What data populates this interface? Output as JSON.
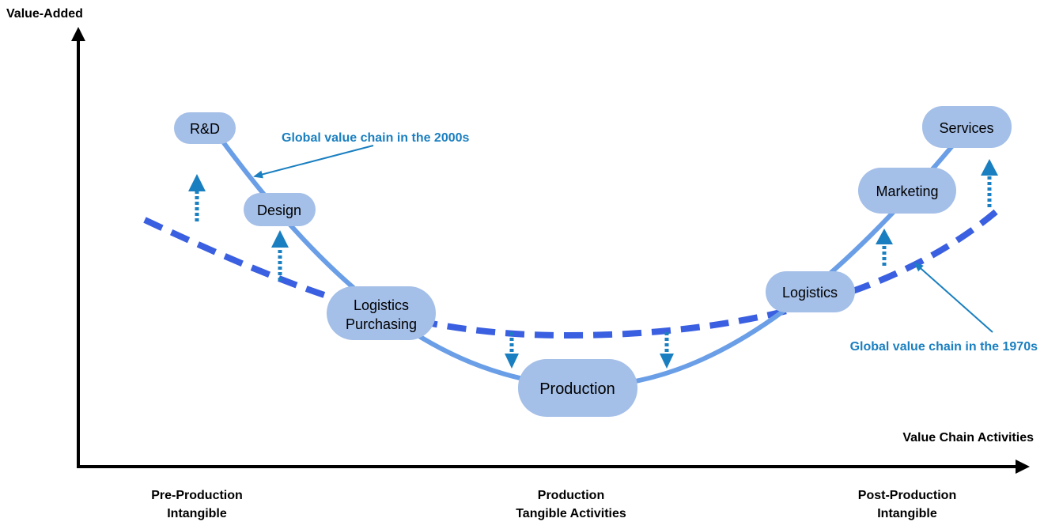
{
  "axes": {
    "y_label": "Value-Added",
    "x_label": "Value Chain Activities"
  },
  "phases": {
    "pre": {
      "line1": "Pre-Production",
      "line2": "Intangible"
    },
    "mid": {
      "line1": "Production",
      "line2": "Tangible Activities"
    },
    "post": {
      "line1": "Post-Production",
      "line2": "Intangible"
    }
  },
  "nodes": {
    "rd": "R&D",
    "design": "Design",
    "logistics_purchasing": {
      "line1": "Logistics",
      "line2": "Purchasing"
    },
    "production": "Production",
    "logistics": "Logistics",
    "marketing": "Marketing",
    "services": "Services"
  },
  "annotations": {
    "chain_2000s": "Global value chain in the 2000s",
    "chain_1970s": "Global value chain in the 1970s"
  },
  "colors": {
    "curve_2000s": "#6a9ee6",
    "curve_1970s": "#3a5fe0",
    "node_fill": "#a4bfe8",
    "annotation": "#1a7fc0",
    "shift_arrow": "#1a7fc0",
    "axis": "#000000"
  }
}
